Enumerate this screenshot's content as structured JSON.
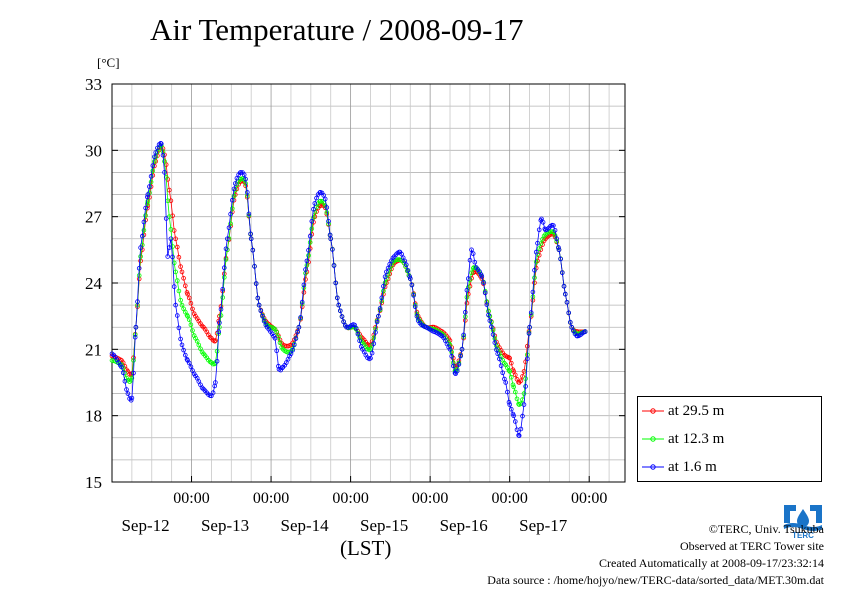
{
  "chart_data": {
    "type": "line",
    "title": "Air Temperature / 2008-09-17",
    "ylabel": "[°C]",
    "xlabel": "(LST)",
    "ylim": [
      15,
      33
    ],
    "yticks": [
      15,
      18,
      21,
      24,
      27,
      30,
      33
    ],
    "xlim": [
      0,
      6.45
    ],
    "x_unit": "days since Sep-11 00:00",
    "xticks": [
      {
        "x": 1.0,
        "time": "00:00",
        "date": "Sep-12"
      },
      {
        "x": 2.0,
        "time": "00:00",
        "date": "Sep-13"
      },
      {
        "x": 3.0,
        "time": "00:00",
        "date": "Sep-14"
      },
      {
        "x": 4.0,
        "time": "00:00",
        "date": "Sep-15"
      },
      {
        "x": 5.0,
        "time": "00:00",
        "date": "Sep-16"
      },
      {
        "x": 6.0,
        "time": "00:00",
        "date": "Sep-17"
      }
    ],
    "grid": true,
    "legend_position": "bottom-right, outside plot",
    "series": [
      {
        "name": "at 29.5 m",
        "color": "#ff0000",
        "points": [
          [
            0.0,
            20.7
          ],
          [
            0.12,
            20.5
          ],
          [
            0.2,
            20.0
          ],
          [
            0.25,
            19.9
          ],
          [
            0.3,
            22.0
          ],
          [
            0.36,
            25.0
          ],
          [
            0.45,
            27.5
          ],
          [
            0.55,
            29.5
          ],
          [
            0.62,
            30.2
          ],
          [
            0.66,
            29.8
          ],
          [
            0.72,
            28.2
          ],
          [
            0.8,
            26.0
          ],
          [
            0.88,
            24.5
          ],
          [
            0.95,
            23.5
          ],
          [
            1.05,
            22.5
          ],
          [
            1.15,
            22.0
          ],
          [
            1.25,
            21.5
          ],
          [
            1.3,
            21.4
          ],
          [
            1.35,
            22.5
          ],
          [
            1.45,
            25.5
          ],
          [
            1.55,
            28.0
          ],
          [
            1.62,
            28.6
          ],
          [
            1.68,
            28.4
          ],
          [
            1.75,
            26.0
          ],
          [
            1.85,
            23.0
          ],
          [
            1.95,
            22.2
          ],
          [
            2.05,
            21.9
          ],
          [
            2.15,
            21.2
          ],
          [
            2.25,
            21.2
          ],
          [
            2.35,
            22.0
          ],
          [
            2.45,
            24.5
          ],
          [
            2.55,
            27.0
          ],
          [
            2.62,
            27.5
          ],
          [
            2.68,
            27.4
          ],
          [
            2.75,
            26.0
          ],
          [
            2.85,
            23.0
          ],
          [
            2.95,
            22.0
          ],
          [
            3.05,
            22.0
          ],
          [
            3.15,
            21.5
          ],
          [
            3.25,
            21.2
          ],
          [
            3.35,
            22.5
          ],
          [
            3.45,
            24.0
          ],
          [
            3.55,
            24.9
          ],
          [
            3.65,
            25.0
          ],
          [
            3.75,
            24.2
          ],
          [
            3.85,
            22.5
          ],
          [
            3.95,
            22.0
          ],
          [
            4.05,
            22.0
          ],
          [
            4.15,
            21.8
          ],
          [
            4.25,
            21.4
          ],
          [
            4.32,
            20.2
          ],
          [
            4.4,
            21.0
          ],
          [
            4.48,
            23.5
          ],
          [
            4.55,
            24.5
          ],
          [
            4.65,
            24.2
          ],
          [
            4.75,
            22.5
          ],
          [
            4.85,
            21.2
          ],
          [
            4.95,
            20.7
          ],
          [
            5.0,
            20.6
          ],
          [
            5.05,
            20.0
          ],
          [
            5.12,
            19.5
          ],
          [
            5.18,
            20.0
          ],
          [
            5.25,
            22.0
          ],
          [
            5.35,
            25.0
          ],
          [
            5.45,
            26.0
          ],
          [
            5.55,
            26.2
          ],
          [
            5.62,
            25.5
          ],
          [
            5.7,
            23.5
          ],
          [
            5.78,
            22.0
          ],
          [
            5.85,
            21.8
          ],
          [
            5.95,
            21.8
          ]
        ]
      },
      {
        "name": "at 12.3 m",
        "color": "#00ff00",
        "points": [
          [
            0.0,
            20.5
          ],
          [
            0.12,
            20.3
          ],
          [
            0.2,
            19.6
          ],
          [
            0.25,
            19.7
          ],
          [
            0.3,
            22.0
          ],
          [
            0.36,
            25.2
          ],
          [
            0.45,
            27.7
          ],
          [
            0.55,
            29.7
          ],
          [
            0.62,
            30.2
          ],
          [
            0.66,
            29.5
          ],
          [
            0.72,
            27.0
          ],
          [
            0.8,
            24.5
          ],
          [
            0.88,
            23.0
          ],
          [
            0.95,
            22.5
          ],
          [
            1.05,
            21.5
          ],
          [
            1.15,
            20.8
          ],
          [
            1.25,
            20.4
          ],
          [
            1.3,
            20.4
          ],
          [
            1.35,
            22.0
          ],
          [
            1.45,
            25.5
          ],
          [
            1.55,
            28.2
          ],
          [
            1.62,
            28.7
          ],
          [
            1.68,
            28.5
          ],
          [
            1.75,
            26.0
          ],
          [
            1.85,
            23.0
          ],
          [
            1.95,
            22.1
          ],
          [
            2.05,
            21.9
          ],
          [
            2.15,
            21.0
          ],
          [
            2.25,
            20.9
          ],
          [
            2.35,
            22.0
          ],
          [
            2.45,
            24.8
          ],
          [
            2.55,
            27.2
          ],
          [
            2.62,
            27.7
          ],
          [
            2.68,
            27.5
          ],
          [
            2.75,
            26.0
          ],
          [
            2.85,
            23.0
          ],
          [
            2.95,
            22.0
          ],
          [
            3.05,
            22.0
          ],
          [
            3.15,
            21.3
          ],
          [
            3.25,
            21.0
          ],
          [
            3.35,
            22.5
          ],
          [
            3.45,
            24.2
          ],
          [
            3.55,
            25.0
          ],
          [
            3.65,
            25.0
          ],
          [
            3.75,
            24.2
          ],
          [
            3.85,
            22.4
          ],
          [
            3.95,
            22.0
          ],
          [
            4.05,
            21.9
          ],
          [
            4.15,
            21.7
          ],
          [
            4.25,
            21.2
          ],
          [
            4.32,
            20.0
          ],
          [
            4.4,
            21.0
          ],
          [
            4.48,
            23.8
          ],
          [
            4.55,
            24.7
          ],
          [
            4.65,
            24.3
          ],
          [
            4.75,
            22.5
          ],
          [
            4.85,
            21.0
          ],
          [
            4.95,
            20.3
          ],
          [
            5.0,
            20.0
          ],
          [
            5.05,
            19.3
          ],
          [
            5.12,
            18.5
          ],
          [
            5.18,
            19.0
          ],
          [
            5.25,
            22.0
          ],
          [
            5.35,
            25.3
          ],
          [
            5.45,
            26.2
          ],
          [
            5.55,
            26.3
          ],
          [
            5.62,
            25.5
          ],
          [
            5.7,
            23.5
          ],
          [
            5.78,
            22.0
          ],
          [
            5.85,
            21.7
          ],
          [
            5.95,
            21.8
          ]
        ]
      },
      {
        "name": "at 1.6 m",
        "color": "#0000ff",
        "points": [
          [
            0.0,
            20.8
          ],
          [
            0.12,
            20.2
          ],
          [
            0.2,
            19.0
          ],
          [
            0.25,
            18.8
          ],
          [
            0.3,
            22.0
          ],
          [
            0.36,
            25.6
          ],
          [
            0.45,
            28.0
          ],
          [
            0.55,
            29.9
          ],
          [
            0.62,
            30.3
          ],
          [
            0.66,
            29.0
          ],
          [
            0.7,
            25.2
          ],
          [
            0.74,
            26.0
          ],
          [
            0.8,
            23.0
          ],
          [
            0.88,
            21.2
          ],
          [
            0.95,
            20.5
          ],
          [
            1.05,
            19.8
          ],
          [
            1.15,
            19.2
          ],
          [
            1.25,
            18.9
          ],
          [
            1.3,
            19.5
          ],
          [
            1.35,
            22.2
          ],
          [
            1.45,
            26.0
          ],
          [
            1.55,
            28.5
          ],
          [
            1.62,
            29.0
          ],
          [
            1.68,
            28.7
          ],
          [
            1.75,
            26.0
          ],
          [
            1.85,
            23.0
          ],
          [
            1.95,
            22.0
          ],
          [
            2.05,
            21.5
          ],
          [
            2.1,
            20.1
          ],
          [
            2.15,
            20.2
          ],
          [
            2.25,
            20.8
          ],
          [
            2.35,
            22.0
          ],
          [
            2.45,
            25.0
          ],
          [
            2.55,
            27.6
          ],
          [
            2.62,
            28.1
          ],
          [
            2.68,
            27.8
          ],
          [
            2.75,
            26.0
          ],
          [
            2.85,
            23.0
          ],
          [
            2.95,
            22.0
          ],
          [
            3.05,
            22.1
          ],
          [
            3.15,
            21.0
          ],
          [
            3.25,
            20.6
          ],
          [
            3.35,
            22.5
          ],
          [
            3.45,
            24.5
          ],
          [
            3.55,
            25.2
          ],
          [
            3.62,
            25.4
          ],
          [
            3.68,
            25.0
          ],
          [
            3.75,
            24.2
          ],
          [
            3.85,
            22.3
          ],
          [
            3.95,
            22.0
          ],
          [
            4.05,
            21.8
          ],
          [
            4.15,
            21.6
          ],
          [
            4.25,
            21.0
          ],
          [
            4.32,
            19.9
          ],
          [
            4.4,
            21.0
          ],
          [
            4.48,
            24.2
          ],
          [
            4.52,
            25.5
          ],
          [
            4.58,
            24.7
          ],
          [
            4.65,
            24.3
          ],
          [
            4.75,
            22.3
          ],
          [
            4.85,
            20.8
          ],
          [
            4.95,
            19.5
          ],
          [
            5.0,
            18.5
          ],
          [
            5.05,
            18.0
          ],
          [
            5.12,
            17.1
          ],
          [
            5.18,
            18.5
          ],
          [
            5.25,
            22.0
          ],
          [
            5.35,
            25.8
          ],
          [
            5.4,
            26.9
          ],
          [
            5.45,
            26.4
          ],
          [
            5.55,
            26.6
          ],
          [
            5.62,
            25.5
          ],
          [
            5.7,
            23.5
          ],
          [
            5.78,
            22.0
          ],
          [
            5.85,
            21.6
          ],
          [
            5.95,
            21.8
          ]
        ]
      }
    ]
  },
  "footer": {
    "copyright": "©TERC, Univ. Tsukuba",
    "site": "Observed at TERC Tower site",
    "created": "Created Automatically at 2008-09-17/23:32:14",
    "source": "Data source : /home/hojyo/new/TERC-data/sorted_data/MET.30m.dat"
  },
  "logo": {
    "text": "TERC",
    "icon": "terc-logo-icon",
    "color": "#1a74c8"
  }
}
